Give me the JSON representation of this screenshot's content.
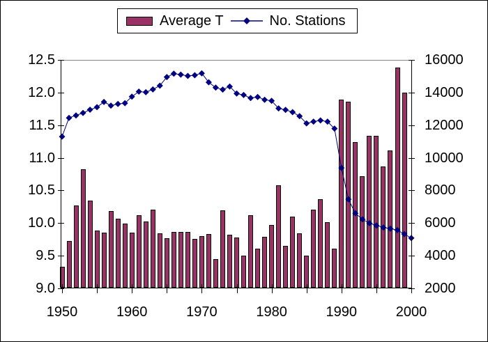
{
  "chart": {
    "legend": {
      "items": [
        {
          "label": "Average T",
          "marker": "bar-swatch",
          "color": "#993366"
        },
        {
          "label": "No. Stations",
          "marker": "line-diamond",
          "color": "#000080"
        }
      ]
    },
    "left_axis_tick_labels": [
      "12.5",
      "12.0",
      "11.5",
      "11.0",
      "10.5",
      "10.0",
      "9.5",
      "9.0"
    ],
    "right_axis_tick_labels": [
      "16000",
      "14000",
      "12000",
      "10000",
      "8000",
      "6000",
      "4000",
      "2000"
    ],
    "x_axis_tick_labels": [
      "1950",
      "1960",
      "1970",
      "1980",
      "1990",
      "2000"
    ],
    "colors": {
      "bar_fill": "#993366",
      "bar_border": "#000000",
      "line": "#000080",
      "axis": "#000000",
      "top_gridline": "#848484",
      "background": "#ffffff"
    }
  },
  "chart_data": {
    "type": "combo",
    "title": "",
    "x": [
      1950,
      1951,
      1952,
      1953,
      1954,
      1955,
      1956,
      1957,
      1958,
      1959,
      1960,
      1961,
      1962,
      1963,
      1964,
      1965,
      1966,
      1967,
      1968,
      1969,
      1970,
      1971,
      1972,
      1973,
      1974,
      1975,
      1976,
      1977,
      1978,
      1979,
      1980,
      1981,
      1982,
      1983,
      1984,
      1985,
      1986,
      1987,
      1988,
      1989,
      1990,
      1991,
      1992,
      1993,
      1994,
      1995,
      1996,
      1997,
      1998,
      1999,
      2000
    ],
    "series": [
      {
        "name": "Average T",
        "type": "bar",
        "axis": "left",
        "color": "#993366",
        "values": [
          9.33,
          9.73,
          10.27,
          10.82,
          10.35,
          9.89,
          9.85,
          10.18,
          10.07,
          9.99,
          9.85,
          10.12,
          10.03,
          10.21,
          9.84,
          9.77,
          9.86,
          9.86,
          9.86,
          9.76,
          9.8,
          9.83,
          9.45,
          10.2,
          9.82,
          9.78,
          9.5,
          10.12,
          9.61,
          9.79,
          9.97,
          10.58,
          9.65,
          10.1,
          9.84,
          9.5,
          10.21,
          10.37,
          10.01,
          9.61,
          11.89,
          11.86,
          11.24,
          10.72,
          11.34,
          11.34,
          10.87,
          11.11,
          12.38,
          12.0,
          null
        ]
      },
      {
        "name": "No. Stations",
        "type": "line",
        "axis": "right",
        "color": "#000080",
        "marker": "diamond",
        "values": [
          11300,
          12450,
          12600,
          12750,
          12950,
          13100,
          13420,
          13200,
          13300,
          13350,
          13750,
          14060,
          14020,
          14190,
          14420,
          14950,
          15160,
          15100,
          15020,
          15060,
          15180,
          14630,
          14300,
          14180,
          14370,
          13940,
          13850,
          13660,
          13730,
          13560,
          13490,
          13030,
          12940,
          12800,
          12550,
          12110,
          12220,
          12290,
          12220,
          11790,
          9380,
          7460,
          6600,
          6230,
          5990,
          5850,
          5730,
          5660,
          5570,
          5330,
          5080
        ]
      }
    ],
    "left_ylim": [
      9.0,
      12.5
    ],
    "left_tick_step": 0.5,
    "right_ylim": [
      2000,
      16000
    ],
    "right_tick_step": 2000,
    "x_major_tick_step": 5,
    "x_label_step": 10,
    "legend_position": "top-center",
    "grid": "single gray gridline at top (12.5 / 16000)"
  }
}
